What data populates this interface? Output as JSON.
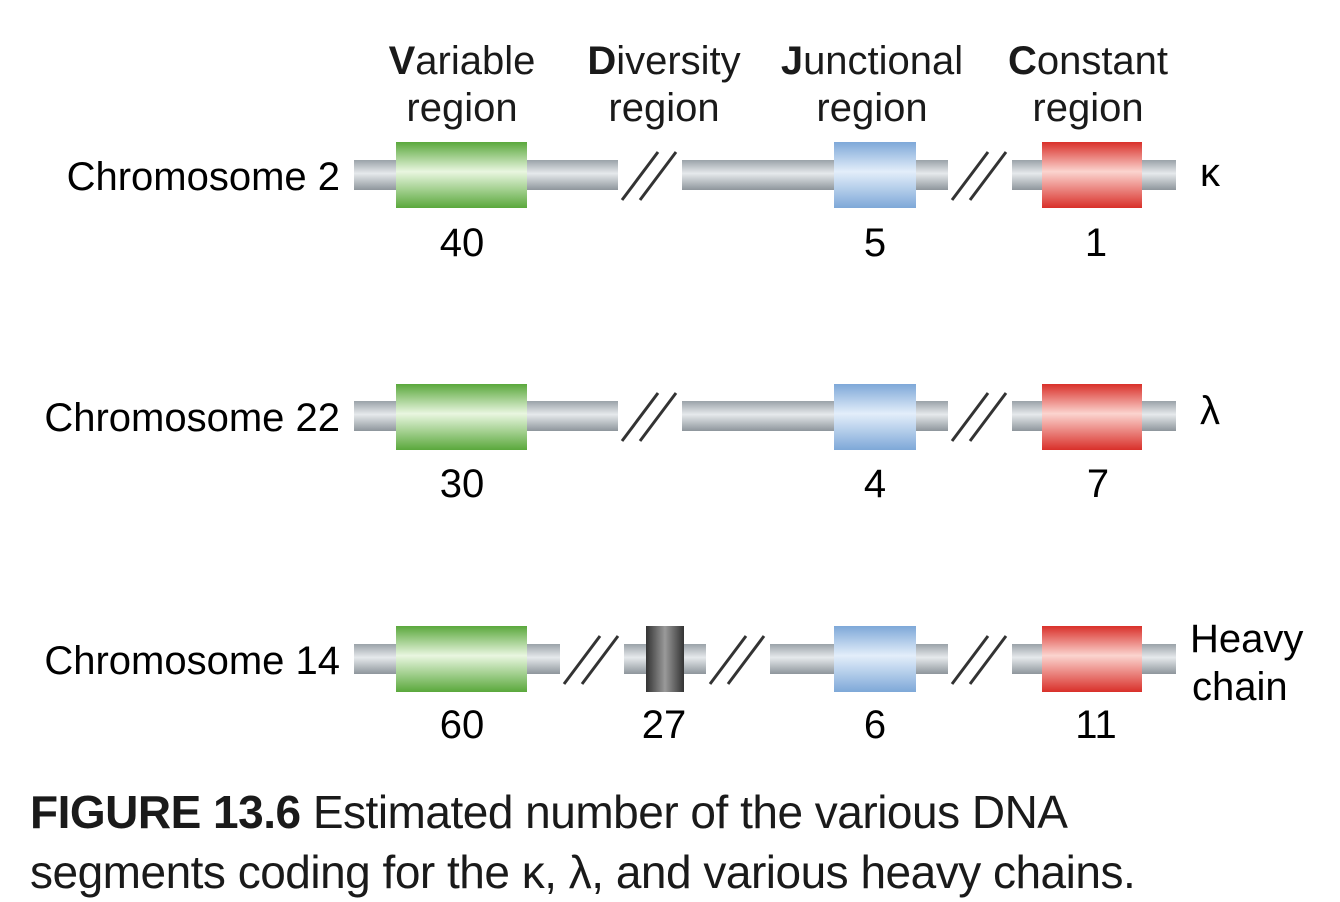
{
  "regions": [
    {
      "initial": "V",
      "rest": "ariable",
      "line2": "region"
    },
    {
      "initial": "D",
      "rest": "iversity",
      "line2": "region"
    },
    {
      "initial": "J",
      "rest": "unctional",
      "line2": "region"
    },
    {
      "initial": "C",
      "rest": "onstant",
      "line2": "region"
    }
  ],
  "chromosomes": [
    {
      "label": "Chromosome 2",
      "chain": "κ",
      "counts": {
        "variable": "40",
        "junctional": "5",
        "constant": "1"
      }
    },
    {
      "label": "Chromosome 22",
      "chain": "λ",
      "counts": {
        "variable": "30",
        "junctional": "4",
        "constant": "7"
      }
    },
    {
      "label": "Chromosome 14",
      "chain_line1": "Heavy",
      "chain_line2": "chain",
      "counts": {
        "variable": "60",
        "diversity": "27",
        "junctional": "6",
        "constant": "11"
      }
    }
  ],
  "caption": {
    "label": "FIGURE 13.6",
    "text_line1": " Estimated number of the various DNA",
    "text_line2": "segments coding for the κ, λ, and various heavy chains."
  },
  "colors": {
    "variable": "#7cc35a",
    "diversity": "#555555",
    "junctional": "#8fb6e3",
    "constant": "#ec4a3c",
    "dna_strand": "#b5bcc2"
  }
}
